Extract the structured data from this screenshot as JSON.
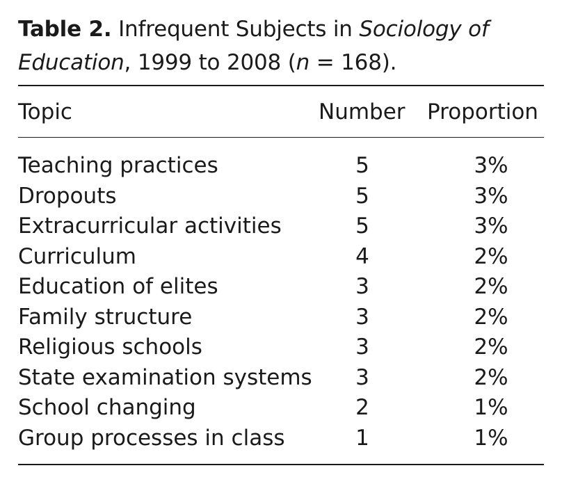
{
  "caption": {
    "label": "Table 2.",
    "part1": "Infrequent Subjects in ",
    "journal_line1": "Sociology of",
    "journal_line2": "Education",
    "part2": ", 1999 to 2008 (",
    "n": "n",
    "part3": " = 168)."
  },
  "table": {
    "headers": {
      "topic": "Topic",
      "number": "Number",
      "proportion": "Proportion"
    },
    "rows": [
      {
        "topic": "Teaching practices",
        "number": "5",
        "proportion": "3%"
      },
      {
        "topic": "Dropouts",
        "number": "5",
        "proportion": "3%"
      },
      {
        "topic": "Extracurricular activities",
        "number": "5",
        "proportion": "3%"
      },
      {
        "topic": "Curriculum",
        "number": "4",
        "proportion": "2%"
      },
      {
        "topic": "Education of elites",
        "number": "3",
        "proportion": "2%"
      },
      {
        "topic": "Family structure",
        "number": "3",
        "proportion": "2%"
      },
      {
        "topic": "Religious schools",
        "number": "3",
        "proportion": "2%"
      },
      {
        "topic": "State examination systems",
        "number": "3",
        "proportion": "2%"
      },
      {
        "topic": "School changing",
        "number": "2",
        "proportion": "1%"
      },
      {
        "topic": "Group processes in class",
        "number": "1",
        "proportion": "1%"
      }
    ]
  }
}
